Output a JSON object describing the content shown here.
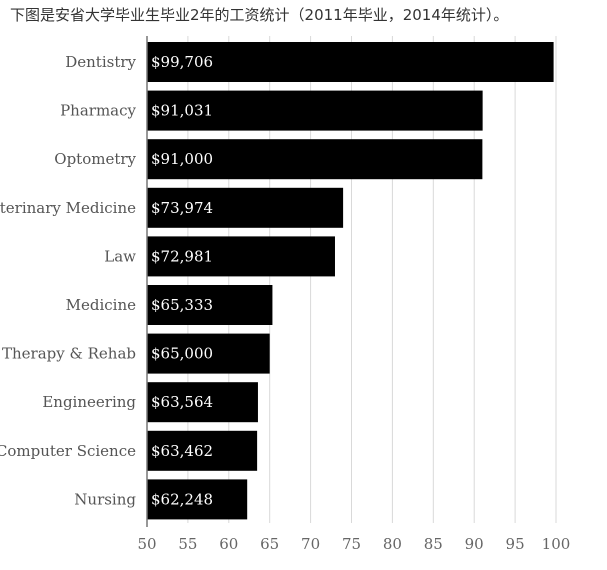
{
  "caption": "下图是安省大学毕业生毕业2年的工资统计（2011年毕业，2014年统计）。",
  "chart_data": {
    "type": "bar",
    "orientation": "horizontal",
    "title": "",
    "xlabel": "",
    "ylabel": "",
    "categories": [
      "Dentistry",
      "Pharmacy",
      "Optometry",
      "Veterinary Medicine",
      "Law",
      "Medicine",
      "Therapy & Rehab",
      "Engineering",
      "Computer Science",
      "Nursing"
    ],
    "values": [
      99706,
      91031,
      91000,
      73974,
      72981,
      65333,
      65000,
      63564,
      63462,
      62248
    ],
    "value_labels": [
      "$99,706",
      "$91,031",
      "$91,000",
      "$73,974",
      "$72,981",
      "$65,333",
      "$65,000",
      "$63,564",
      "$63,462",
      "$62,248"
    ],
    "x_ticks": [
      "50",
      "55",
      "60",
      "65",
      "70",
      "75",
      "80",
      "85",
      "90",
      "95",
      "100"
    ],
    "xlim": [
      50000,
      100000
    ],
    "grid": true,
    "bar_color": "#000000"
  }
}
